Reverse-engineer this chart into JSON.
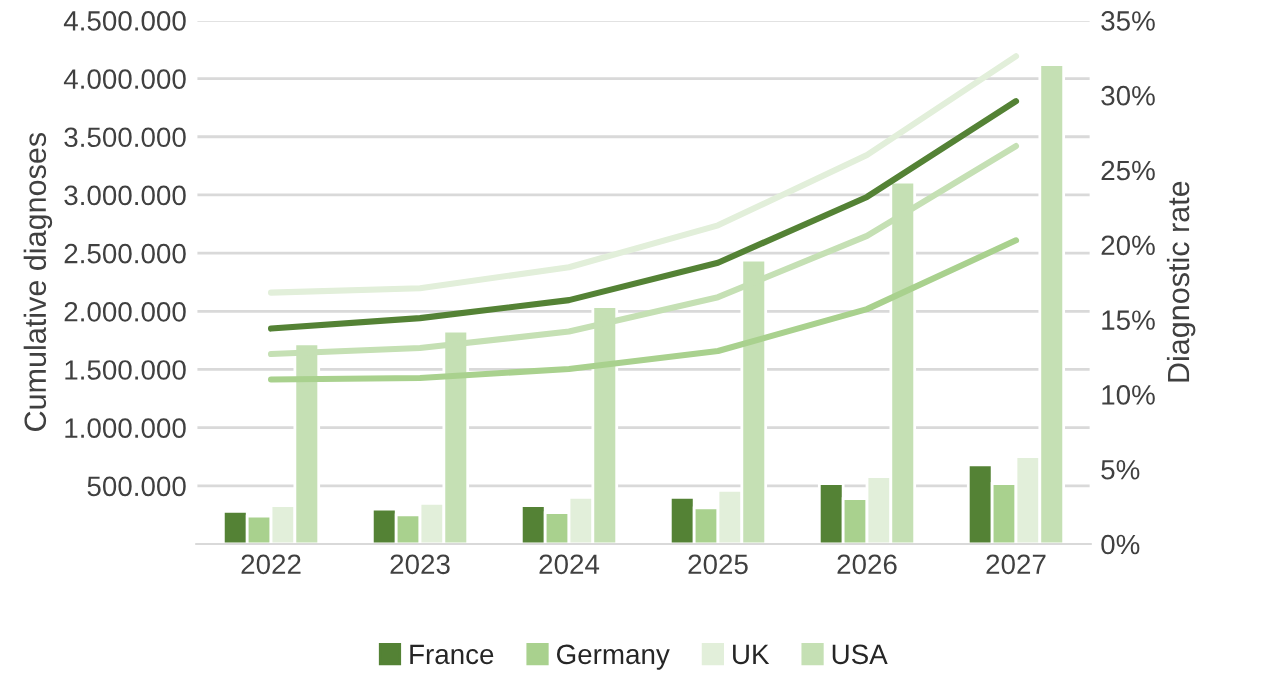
{
  "chart_data": {
    "type": "bar",
    "ylabel": "Cumulative diagnoses",
    "y2label": "Diagnostic rate",
    "categories": [
      "2022",
      "2023",
      "2024",
      "2025",
      "2026",
      "2027"
    ],
    "series": [
      {
        "name": "France",
        "color": "#548235",
        "values": [
          280000,
          300000,
          330000,
          400000,
          520000,
          680000
        ]
      },
      {
        "name": "Germany",
        "color": "#a9d18e",
        "values": [
          240000,
          250000,
          270000,
          310000,
          390000,
          520000
        ]
      },
      {
        "name": "UK",
        "color": "#e2efda",
        "values": [
          330000,
          350000,
          400000,
          460000,
          580000,
          750000
        ]
      },
      {
        "name": "USA",
        "color": "#c5e0b4",
        "values": [
          1720000,
          1830000,
          2040000,
          2440000,
          3110000,
          4120000
        ]
      },
      {
        "type": "line",
        "axis": "y2",
        "color": "#e2efda",
        "values": [
          16.8,
          17.1,
          18.5,
          21.3,
          26.0,
          32.6
        ]
      },
      {
        "type": "line",
        "axis": "y2",
        "color": "#548235",
        "values": [
          14.4,
          15.1,
          16.3,
          18.8,
          23.2,
          29.6
        ]
      },
      {
        "type": "line",
        "axis": "y2",
        "color": "#c5e0b4",
        "values": [
          12.7,
          13.1,
          14.2,
          16.5,
          20.6,
          26.6
        ]
      },
      {
        "type": "line",
        "axis": "y2",
        "color": "#a9d18e",
        "values": [
          11.0,
          11.1,
          11.7,
          12.9,
          15.7,
          20.3
        ]
      }
    ],
    "ylim": [
      0,
      4500000
    ],
    "yticks": [
      {
        "value": 500000,
        "label": "500.000"
      },
      {
        "value": 1000000,
        "label": "1.000.000"
      },
      {
        "value": 1500000,
        "label": "1.500.000"
      },
      {
        "value": 2000000,
        "label": "2.000.000"
      },
      {
        "value": 2500000,
        "label": "2.500.000"
      },
      {
        "value": 3000000,
        "label": "3.000.000"
      },
      {
        "value": 3500000,
        "label": "3.500.000"
      },
      {
        "value": 4000000,
        "label": "4.000.000"
      },
      {
        "value": 4500000,
        "label": "4.500.000"
      }
    ],
    "y2lim": [
      0,
      35
    ],
    "y2ticks": [
      {
        "value": 0,
        "label": "0%"
      },
      {
        "value": 5,
        "label": "5%"
      },
      {
        "value": 10,
        "label": "10%"
      },
      {
        "value": 15,
        "label": "15%"
      },
      {
        "value": 20,
        "label": "20%"
      },
      {
        "value": 25,
        "label": "25%"
      },
      {
        "value": 30,
        "label": "30%"
      },
      {
        "value": 35,
        "label": "35%"
      }
    ],
    "grid": "y",
    "legend": "bottom"
  }
}
